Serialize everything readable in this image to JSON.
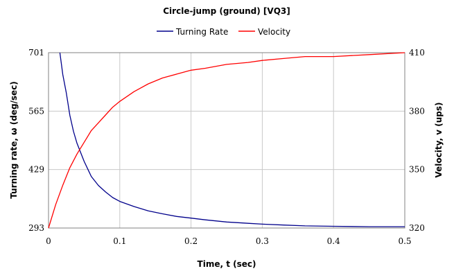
{
  "chart_data": {
    "type": "line",
    "title": "Circle-jump (ground) [VQ3]",
    "xlabel": "Time, t (sec)",
    "ylabel_left": "Turning rate, ω (deg/sec)",
    "ylabel_right": "Velocity, v (ups)",
    "xlim": [
      0,
      0.5
    ],
    "ylim_left": [
      293,
      701
    ],
    "ylim_right": [
      320,
      410
    ],
    "x_ticks": [
      "0",
      "0.1",
      "0.2",
      "0.3",
      "0.4",
      "0.5"
    ],
    "y_left_ticks": [
      "293",
      "429",
      "565",
      "701"
    ],
    "y_right_ticks": [
      "320",
      "350",
      "380",
      "410"
    ],
    "grid": true,
    "legend_placement": "top",
    "series": [
      {
        "name": "Turning Rate",
        "axis": "left",
        "color": "#00008B",
        "x": [
          0.016,
          0.02,
          0.025,
          0.03,
          0.035,
          0.04,
          0.05,
          0.06,
          0.07,
          0.08,
          0.09,
          0.1,
          0.12,
          0.14,
          0.16,
          0.18,
          0.2,
          0.22,
          0.25,
          0.28,
          0.3,
          0.33,
          0.36,
          0.4,
          0.45,
          0.5
        ],
        "values": [
          701,
          650,
          607,
          555,
          518,
          490,
          448,
          413,
          392,
          377,
          364,
          355,
          343,
          333,
          326,
          320,
          316,
          312,
          307,
          304,
          302,
          300,
          298,
          297,
          296,
          296
        ]
      },
      {
        "name": "Velocity",
        "axis": "right",
        "color": "#FF0000",
        "x": [
          0,
          0.01,
          0.02,
          0.03,
          0.04,
          0.05,
          0.06,
          0.07,
          0.08,
          0.09,
          0.1,
          0.12,
          0.14,
          0.16,
          0.18,
          0.2,
          0.22,
          0.25,
          0.28,
          0.3,
          0.33,
          0.36,
          0.4,
          0.45,
          0.5
        ],
        "values": [
          320,
          332,
          342,
          351,
          358,
          364,
          370,
          374,
          378,
          382,
          385,
          390,
          394,
          397,
          399,
          401,
          402,
          404,
          405,
          406,
          407,
          408,
          408,
          409,
          410
        ]
      }
    ]
  }
}
